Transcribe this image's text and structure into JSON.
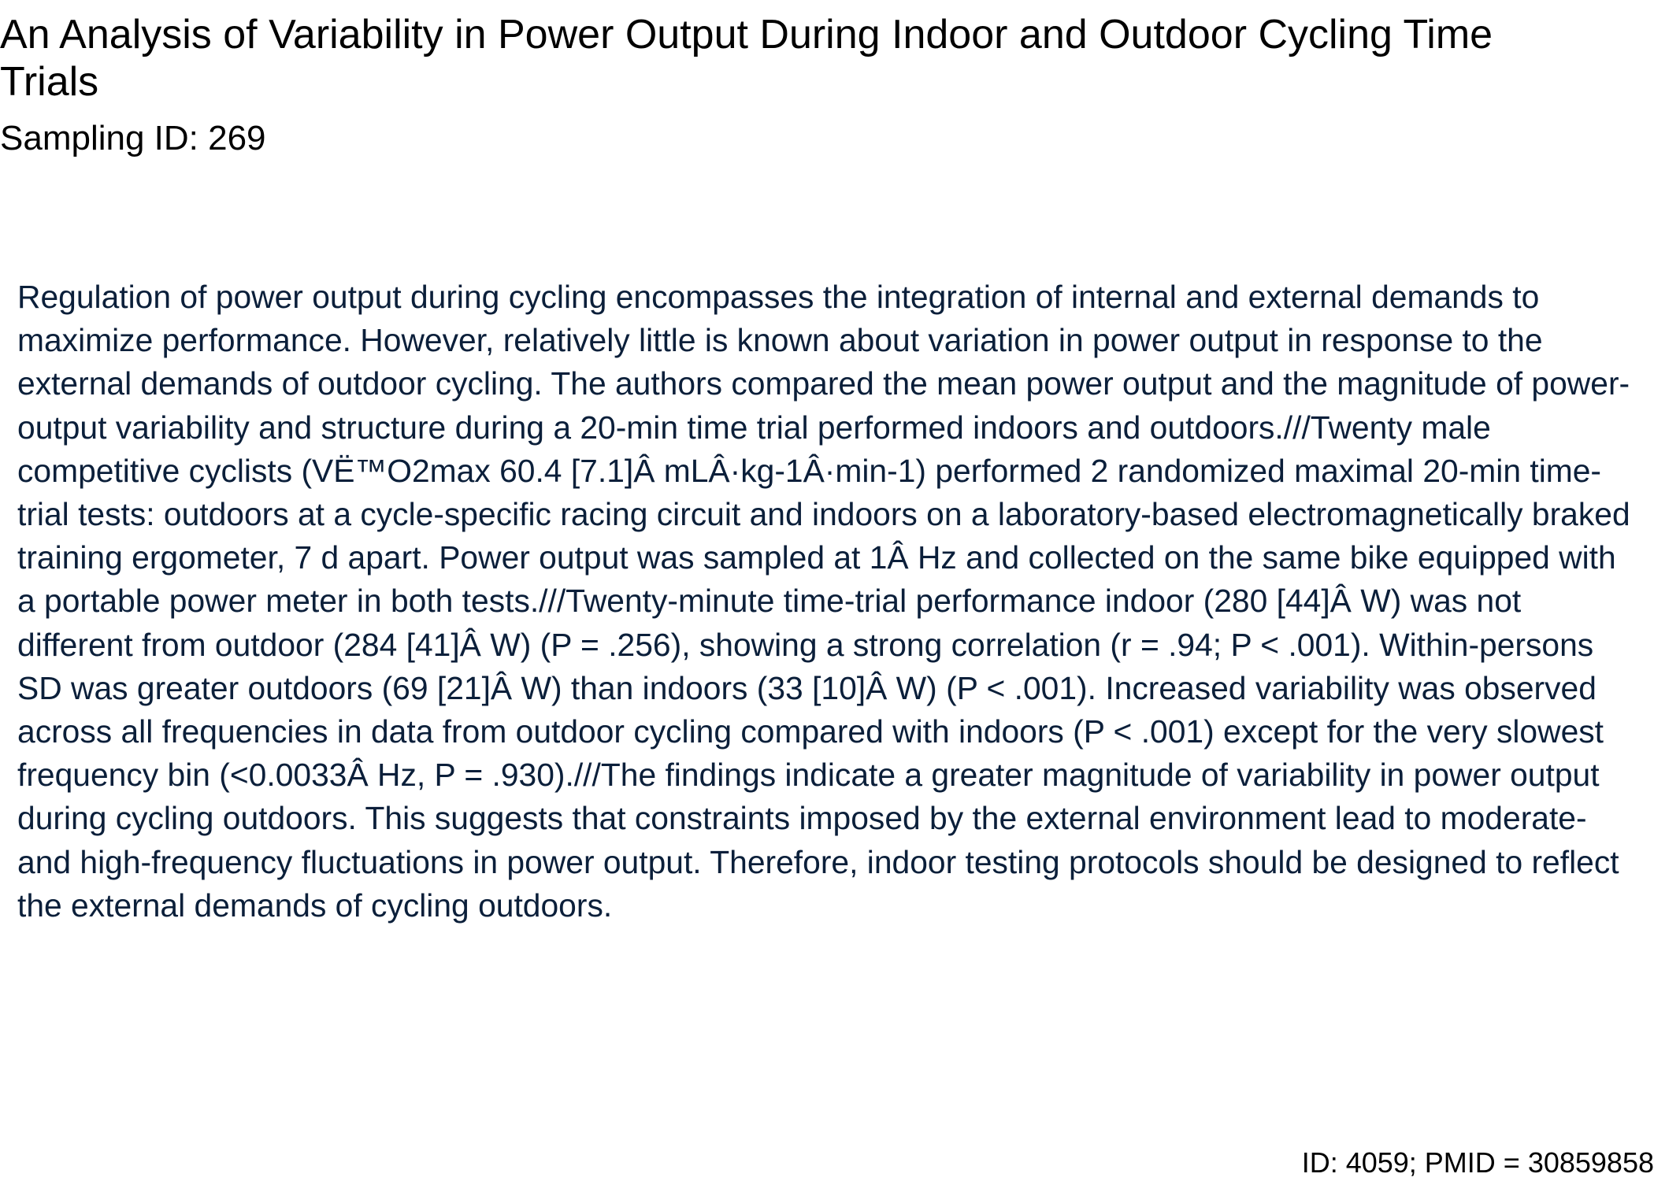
{
  "document": {
    "title": "An Analysis of Variability in Power Output During Indoor and Outdoor Cycling Time Trials",
    "sampling_id": "Sampling ID: 269",
    "abstract": "Regulation of power output during cycling encompasses the integration of internal and external demands to maximize performance. However, relatively little is known about variation in power output in response to the external demands of outdoor cycling. The authors compared the mean power output and the magnitude of power-output variability and structure during a 20-min time trial performed indoors and outdoors.///Twenty male competitive cyclists (VË™O2max 60.4 [7.1]Â mLÂ·kg-1Â·min-1) performed 2 randomized maximal 20-min time-trial tests: outdoors at a cycle-specific racing circuit and indoors on a laboratory-based electromagnetically braked training ergometer, 7 d apart. Power output was sampled at 1Â Hz and collected on the same bike equipped with a portable power meter in both tests.///Twenty-minute time-trial performance indoor (280 [44]Â W) was not different from outdoor (284 [41]Â W) (P = .256), showing a strong correlation (r = .94; P < .001). Within-persons SD was greater outdoors (69 [21]Â W) than indoors (33 [10]Â W) (P < .001). Increased variability was observed across all frequencies in data from outdoor cycling compared with indoors (P < .001) except for the very slowest frequency bin (<0.0033Â Hz, P = .930).///The findings indicate a greater magnitude of variability in power output during cycling outdoors. This suggests that constraints imposed by the external environment lead to moderate- and high-frequency fluctuations in power output. Therefore, indoor testing protocols should be designed to reflect the external demands of cycling outdoors.",
    "footer_id": "ID: 4059; PMID = 30859858"
  },
  "colors": {
    "title_text": "#000000",
    "abstract_text": "#0b1f3a",
    "background": "#ffffff"
  }
}
